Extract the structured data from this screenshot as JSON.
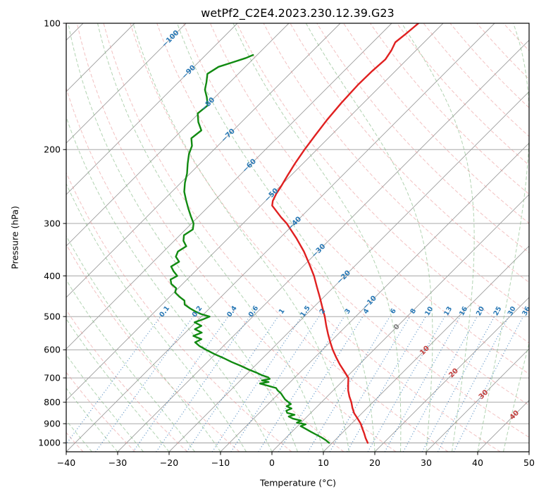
{
  "chart_data": {
    "type": "line",
    "chart_kind": "skewt_log_p",
    "title": "wetPf2_C2E4.2023.230.12.39.G23",
    "xlabel": "Temperature (°C)",
    "ylabel": "Pressure (hPa)",
    "x_range": [
      -40,
      50
    ],
    "x_ticks": [
      -40,
      -30,
      -20,
      -10,
      0,
      10,
      20,
      30,
      40,
      50
    ],
    "pressure_range": [
      100,
      1050
    ],
    "pressure_ticks": [
      100,
      200,
      300,
      400,
      500,
      600,
      700,
      800,
      900,
      1000
    ],
    "skew_degrees": 45,
    "grid": true,
    "isotherm_range": [
      -130,
      50
    ],
    "isotherm_step": 10,
    "isotherm_labels": [
      -100,
      -90,
      -80,
      -70,
      -60,
      -50,
      -40,
      -30,
      -20,
      -10,
      0,
      10,
      20,
      30,
      40
    ],
    "dry_adiabats_theta_c": [
      -40,
      -30,
      -20,
      -10,
      0,
      10,
      20,
      30,
      40,
      50,
      60,
      70,
      80,
      90,
      100,
      110,
      120,
      130,
      140,
      150,
      160,
      170,
      180,
      190
    ],
    "moist_adiabats_start_c": [
      -40,
      -35,
      -30,
      -25,
      -20,
      -15,
      -10,
      -5,
      0,
      5,
      10,
      15,
      20,
      25,
      30,
      35,
      40,
      45,
      50
    ],
    "mixing_ratio_lines_g_kg": [
      0.1,
      0.2,
      0.4,
      0.6,
      1,
      1.5,
      2,
      3,
      4,
      6,
      8,
      10,
      13,
      16,
      20,
      25,
      30,
      36
    ],
    "mixing_ratio_top_hpa": 500,
    "colors": {
      "grid": "#9c9c9c",
      "dry_adiabat": "#e89090",
      "moist_adiabat": "#7fb77f",
      "mixing_ratio": "#3a7cba",
      "label_cold": "#2878b5",
      "label_warm": "#c44240",
      "label_zero": "#7f7f7f",
      "mixing_ratio_label": "#2878b5",
      "temperature": "#e02020",
      "dewpoint": "#118a11",
      "frame": "#000000"
    },
    "series": [
      {
        "name": "temperature",
        "color": "#e02020",
        "points_p_T": [
          [
            1000,
            16.9
          ],
          [
            975,
            15.6
          ],
          [
            950,
            14.4
          ],
          [
            925,
            13.1
          ],
          [
            900,
            11.8
          ],
          [
            875,
            10.2
          ],
          [
            850,
            8.5
          ],
          [
            825,
            7.1
          ],
          [
            800,
            5.8
          ],
          [
            775,
            4.3
          ],
          [
            750,
            2.9
          ],
          [
            725,
            1.7
          ],
          [
            700,
            0.5
          ],
          [
            675,
            -1.6
          ],
          [
            650,
            -3.8
          ],
          [
            625,
            -5.9
          ],
          [
            600,
            -8.0
          ],
          [
            575,
            -10.0
          ],
          [
            550,
            -12.0
          ],
          [
            525,
            -14.0
          ],
          [
            500,
            -16.0
          ],
          [
            475,
            -18.3
          ],
          [
            450,
            -20.7
          ],
          [
            425,
            -23.3
          ],
          [
            400,
            -26.0
          ],
          [
            375,
            -29.2
          ],
          [
            350,
            -32.7
          ],
          [
            325,
            -36.8
          ],
          [
            300,
            -41.5
          ],
          [
            290,
            -43.8
          ],
          [
            280,
            -46.0
          ],
          [
            272,
            -47.8
          ],
          [
            265,
            -48.6
          ],
          [
            255,
            -49.3
          ],
          [
            245,
            -49.8
          ],
          [
            230,
            -50.7
          ],
          [
            215,
            -51.6
          ],
          [
            200,
            -52.4
          ],
          [
            185,
            -53.1
          ],
          [
            170,
            -53.8
          ],
          [
            155,
            -54.3
          ],
          [
            140,
            -54.6
          ],
          [
            130,
            -54.5
          ],
          [
            122,
            -54.2
          ],
          [
            116,
            -54.8
          ],
          [
            111,
            -55.6
          ],
          [
            106,
            -55.2
          ],
          [
            100,
            -54.8
          ]
        ]
      },
      {
        "name": "dewpoint",
        "color": "#118a11",
        "points_p_T": [
          [
            1000,
            9.4
          ],
          [
            985,
            8.2
          ],
          [
            970,
            6.8
          ],
          [
            955,
            5.2
          ],
          [
            940,
            3.6
          ],
          [
            925,
            2.0
          ],
          [
            912,
            0.6
          ],
          [
            903,
            1.2
          ],
          [
            895,
            -0.8
          ],
          [
            885,
            -0.4
          ],
          [
            875,
            -2.4
          ],
          [
            865,
            -3.6
          ],
          [
            857,
            -2.8
          ],
          [
            848,
            -4.6
          ],
          [
            838,
            -5.2
          ],
          [
            828,
            -4.6
          ],
          [
            818,
            -6.0
          ],
          [
            808,
            -5.6
          ],
          [
            800,
            -6.4
          ],
          [
            788,
            -7.6
          ],
          [
            775,
            -8.6
          ],
          [
            762,
            -9.6
          ],
          [
            750,
            -10.8
          ],
          [
            740,
            -11.6
          ],
          [
            730,
            -13.8
          ],
          [
            722,
            -15.6
          ],
          [
            716,
            -14.2
          ],
          [
            710,
            -15.8
          ],
          [
            704,
            -14.6
          ],
          [
            698,
            -15.2
          ],
          [
            690,
            -16.8
          ],
          [
            680,
            -18.4
          ],
          [
            668,
            -20.6
          ],
          [
            655,
            -22.8
          ],
          [
            642,
            -25.2
          ],
          [
            628,
            -27.6
          ],
          [
            614,
            -30.2
          ],
          [
            600,
            -32.6
          ],
          [
            588,
            -34.6
          ],
          [
            576,
            -36.2
          ],
          [
            566,
            -35.6
          ],
          [
            556,
            -37.8
          ],
          [
            546,
            -36.8
          ],
          [
            536,
            -38.8
          ],
          [
            526,
            -38.2
          ],
          [
            516,
            -40.2
          ],
          [
            508,
            -39.2
          ],
          [
            500,
            -38.4
          ],
          [
            493,
            -40.6
          ],
          [
            486,
            -42.2
          ],
          [
            478,
            -43.8
          ],
          [
            468,
            -45.6
          ],
          [
            458,
            -46.4
          ],
          [
            448,
            -48.2
          ],
          [
            438,
            -49.8
          ],
          [
            428,
            -50.4
          ],
          [
            418,
            -52.2
          ],
          [
            408,
            -53.2
          ],
          [
            400,
            -52.6
          ],
          [
            390,
            -54.2
          ],
          [
            380,
            -55.6
          ],
          [
            370,
            -55.0
          ],
          [
            360,
            -56.6
          ],
          [
            350,
            -57.2
          ],
          [
            340,
            -56.6
          ],
          [
            330,
            -58.2
          ],
          [
            320,
            -59.2
          ],
          [
            310,
            -58.6
          ],
          [
            300,
            -59.6
          ],
          [
            288,
            -61.6
          ],
          [
            276,
            -63.6
          ],
          [
            264,
            -65.6
          ],
          [
            252,
            -67.6
          ],
          [
            240,
            -69.2
          ],
          [
            228,
            -70.6
          ],
          [
            216,
            -72.4
          ],
          [
            205,
            -74.0
          ],
          [
            196,
            -75.0
          ],
          [
            188,
            -76.6
          ],
          [
            180,
            -76.2
          ],
          [
            172,
            -78.4
          ],
          [
            164,
            -80.2
          ],
          [
            157,
            -79.8
          ],
          [
            150,
            -81.6
          ],
          [
            144,
            -83.4
          ],
          [
            138,
            -84.6
          ],
          [
            132,
            -86.0
          ],
          [
            127,
            -85.2
          ],
          [
            124,
            -83.4
          ],
          [
            121,
            -81.6
          ],
          [
            119,
            -80.8
          ]
        ]
      }
    ]
  }
}
